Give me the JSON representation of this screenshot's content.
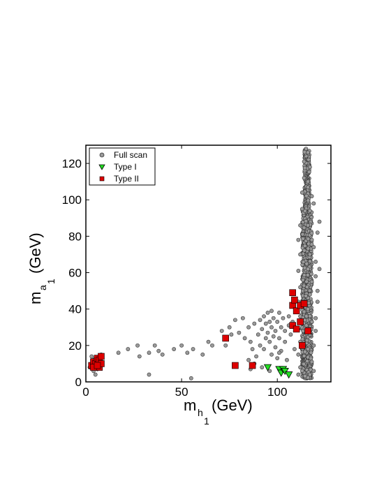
{
  "chart_data": {
    "type": "scatter",
    "title": "",
    "xlabel": {
      "main": "m",
      "sub": "h",
      "subsub": "1",
      "unit": "(GeV)"
    },
    "ylabel": {
      "main": "m",
      "sub": "a",
      "subsub": "1",
      "unit": "(GeV)"
    },
    "xlim": [
      0,
      128
    ],
    "ylim": [
      0,
      130
    ],
    "xticks": [
      0,
      50,
      100
    ],
    "yticks": [
      0,
      20,
      40,
      60,
      80,
      100,
      120
    ],
    "grid": false,
    "legend_position": "top-left",
    "legend": [
      "Full scan",
      "Type I",
      "Type II"
    ],
    "series": [
      {
        "name": "Full scan",
        "marker": "circle",
        "color": "#9a9a9a",
        "note_dense_band": {
          "x_range": [
            113,
            118
          ],
          "y_range": [
            2,
            128
          ]
        },
        "points": [
          [
            2,
            8
          ],
          [
            3,
            10
          ],
          [
            4,
            6
          ],
          [
            4,
            12
          ],
          [
            5,
            9
          ],
          [
            5,
            13
          ],
          [
            6,
            7
          ],
          [
            6,
            11
          ],
          [
            7,
            14
          ],
          [
            7,
            8
          ],
          [
            8,
            10
          ],
          [
            8,
            15
          ],
          [
            3,
            14
          ],
          [
            5,
            4
          ],
          [
            17,
            16
          ],
          [
            22,
            18
          ],
          [
            27,
            20
          ],
          [
            28,
            14
          ],
          [
            33,
            16
          ],
          [
            36,
            20
          ],
          [
            38,
            17
          ],
          [
            40,
            15
          ],
          [
            46,
            18
          ],
          [
            50,
            20
          ],
          [
            53,
            16
          ],
          [
            56,
            18
          ],
          [
            61,
            15
          ],
          [
            64,
            22
          ],
          [
            66,
            20
          ],
          [
            71,
            28
          ],
          [
            73,
            20
          ],
          [
            75,
            30
          ],
          [
            76,
            26
          ],
          [
            78,
            34
          ],
          [
            80,
            27
          ],
          [
            82,
            35
          ],
          [
            83,
            24
          ],
          [
            85,
            30
          ],
          [
            86,
            22
          ],
          [
            87,
            18
          ],
          [
            88,
            32
          ],
          [
            89,
            14
          ],
          [
            90,
            26
          ],
          [
            91,
            20
          ],
          [
            91,
            34
          ],
          [
            92,
            29
          ],
          [
            93,
            18
          ],
          [
            93,
            36
          ],
          [
            94,
            24
          ],
          [
            94,
            32
          ],
          [
            95,
            27
          ],
          [
            95,
            38
          ],
          [
            96,
            22
          ],
          [
            96,
            33
          ],
          [
            97,
            15
          ],
          [
            97,
            30
          ],
          [
            97,
            39
          ],
          [
            98,
            25
          ],
          [
            98,
            35
          ],
          [
            99,
            19
          ],
          [
            99,
            28
          ],
          [
            100,
            33
          ],
          [
            100,
            13
          ],
          [
            101,
            24
          ],
          [
            101,
            38
          ],
          [
            102,
            30
          ],
          [
            102,
            17
          ],
          [
            103,
            35
          ],
          [
            104,
            28
          ],
          [
            104,
            22
          ],
          [
            105,
            12
          ],
          [
            106,
            31
          ],
          [
            106,
            36
          ],
          [
            107,
            26
          ],
          [
            108,
            33
          ],
          [
            109,
            18
          ],
          [
            110,
            29
          ],
          [
            85,
            12
          ],
          [
            86,
            7
          ],
          [
            88,
            10
          ],
          [
            92,
            8
          ],
          [
            96,
            6
          ],
          [
            101,
            16
          ],
          [
            55,
            2
          ],
          [
            33,
            4
          ],
          [
            111,
            4
          ],
          [
            112,
            8
          ],
          [
            111,
            15
          ],
          [
            112,
            22
          ],
          [
            111,
            29
          ],
          [
            112,
            36
          ],
          [
            111,
            44
          ],
          [
            112,
            52
          ],
          [
            111,
            61
          ],
          [
            112,
            70
          ],
          [
            111,
            78
          ],
          [
            112,
            86
          ],
          [
            113,
            95
          ],
          [
            113,
            104
          ],
          [
            114,
            112
          ],
          [
            114,
            121
          ],
          [
            115,
            128
          ],
          [
            116,
            126
          ],
          [
            117,
            118
          ],
          [
            116,
            110
          ],
          [
            118,
            102
          ],
          [
            117,
            94
          ],
          [
            116,
            86
          ],
          [
            118,
            78
          ],
          [
            117,
            70
          ],
          [
            116,
            62
          ],
          [
            118,
            55
          ],
          [
            117,
            48
          ],
          [
            116,
            40
          ],
          [
            118,
            33
          ],
          [
            117,
            26
          ],
          [
            116,
            18
          ],
          [
            118,
            11
          ],
          [
            117,
            4
          ],
          [
            119,
            20
          ],
          [
            120,
            35
          ],
          [
            121,
            50
          ],
          [
            120,
            66
          ],
          [
            121,
            82
          ],
          [
            122,
            88
          ],
          [
            119,
            98
          ],
          [
            120,
            58
          ],
          [
            121,
            44
          ],
          [
            119,
            74
          ],
          [
            122,
            62
          ],
          [
            120,
            28
          ],
          [
            119,
            6
          ]
        ]
      },
      {
        "name": "Type I",
        "marker": "triangle-down",
        "color": "#22dd22",
        "points": [
          [
            95,
            8
          ],
          [
            101,
            7
          ],
          [
            102,
            5
          ],
          [
            103,
            7
          ],
          [
            104,
            6
          ],
          [
            106,
            4
          ]
        ]
      },
      {
        "name": "Type II",
        "marker": "square",
        "color": "#dd0000",
        "points": [
          [
            3,
            9
          ],
          [
            4,
            11
          ],
          [
            5,
            10
          ],
          [
            6,
            13
          ],
          [
            7,
            8
          ],
          [
            7,
            12
          ],
          [
            8,
            10
          ],
          [
            8,
            14
          ],
          [
            4,
            8
          ],
          [
            6,
            9
          ],
          [
            73,
            24
          ],
          [
            78,
            9
          ],
          [
            87,
            9
          ],
          [
            108,
            49
          ],
          [
            108,
            31
          ],
          [
            108,
            42
          ],
          [
            109,
            45
          ],
          [
            110,
            29
          ],
          [
            110,
            39
          ],
          [
            112,
            33
          ],
          [
            112,
            42
          ],
          [
            113,
            20
          ],
          [
            114,
            43
          ],
          [
            116,
            28
          ]
        ]
      }
    ]
  }
}
